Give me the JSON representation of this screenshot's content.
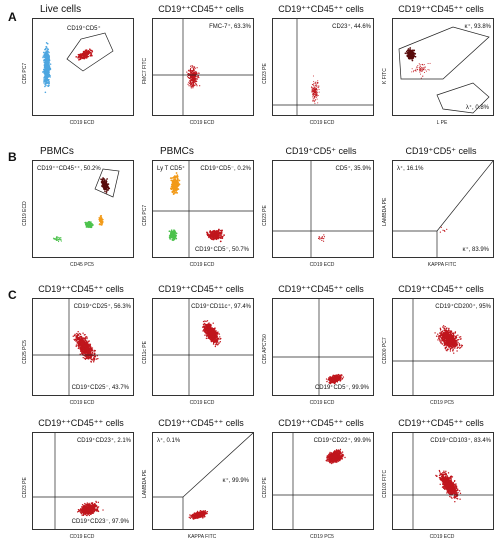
{
  "sections": [
    {
      "letter": "A",
      "panels": [
        {
          "title": "Live cells",
          "ylabel": "CD5 PC7",
          "xlabel": "CD19 ECD",
          "annotations": [
            {
              "text": "CD19⁺CD5⁺",
              "pos": "gate"
            }
          ],
          "kind": "live"
        },
        {
          "title": "CD19⁺⁺CD45⁺⁺ cells",
          "ylabel": "FMC7 FITC",
          "xlabel": "CD19 ECD",
          "annotations": [
            {
              "text": "FMC-7⁺, 63.3%",
              "pos": "top-right"
            }
          ],
          "kind": "scatter-red"
        },
        {
          "title": "CD19⁺⁺CD45⁺⁺ cells",
          "ylabel": "CD23 PE",
          "xlabel": "CD19 ECD",
          "annotations": [
            {
              "text": "CD23⁺, 44.6%",
              "pos": "top-right"
            }
          ],
          "kind": "scatter-red-sparse"
        },
        {
          "title": "CD19⁺⁺CD45⁺⁺ cells",
          "ylabel": "K FITC",
          "xlabel": "L PE",
          "annotations": [
            {
              "text": "κ⁺, 93.8%",
              "pos": "top-right"
            },
            {
              "text": "λ⁺, 0.8%",
              "pos": "bottom-right"
            }
          ],
          "kind": "kappa"
        }
      ]
    },
    {
      "letter": "B",
      "panels": [
        {
          "title": "PBMCs",
          "ylabel": "CD19 ECD",
          "xlabel": "CD45 PC5",
          "annotations": [
            {
              "text": "CD19⁺⁺CD45⁺⁺, 50.2%",
              "pos": "top-left"
            }
          ],
          "kind": "pbmc1"
        },
        {
          "title": "PBMCs",
          "ylabel": "CD5 PC7",
          "xlabel": "CD19 ECD",
          "annotations": [
            {
              "text": "Ly T CD5⁺",
              "pos": "top-left"
            },
            {
              "text": "CD19⁺CD5⁻, 0.2%",
              "pos": "top-right"
            },
            {
              "text": "CD19⁺CD5⁻, 50.7%",
              "pos": "bottom-right"
            }
          ],
          "kind": "pbmc2"
        },
        {
          "title": "CD19⁺CD5⁺ cells",
          "ylabel": "CD23 PE",
          "xlabel": "CD19 ECD",
          "annotations": [
            {
              "text": "CD5⁺, 35.9%",
              "pos": "top-right"
            }
          ],
          "kind": "sparse-b"
        },
        {
          "title": "CD19⁺CD5⁺ cells",
          "ylabel": "LAMBDA PE",
          "xlabel": "KAPPA FITC",
          "annotations": [
            {
              "text": "λ⁺, 16.1%",
              "pos": "top-left"
            },
            {
              "text": "κ⁺, 83.9%",
              "pos": "bottom-right"
            }
          ],
          "kind": "lambda-b"
        }
      ]
    },
    {
      "letter": "C",
      "panels": [
        {
          "title": "CD19⁺⁺CD45⁺⁺ cells",
          "ylabel": "CD25 PC5",
          "xlabel": "CD19 ECD",
          "annotations": [
            {
              "text": "CD19⁺CD25⁺, 56.3%",
              "pos": "top-right"
            },
            {
              "text": "CD19⁺CD25⁻, 43.7%",
              "pos": "bottom-right"
            }
          ],
          "kind": "c-mid"
        },
        {
          "title": "CD19⁺⁺CD45⁺⁺ cells",
          "ylabel": "CD11c PE",
          "xlabel": "CD19 ECD",
          "annotations": [
            {
              "text": "CD19⁺CD11c⁺, 97.4%",
              "pos": "top-right"
            }
          ],
          "kind": "c-high"
        },
        {
          "title": "CD19⁺⁺CD45⁺⁺ cells",
          "ylabel": "CD5 APC750",
          "xlabel": "CD19 ECD",
          "annotations": [
            {
              "text": "CD19⁺CD5⁻, 99.9%",
              "pos": "bottom-right"
            }
          ],
          "kind": "c-low"
        },
        {
          "title": "CD19⁺⁺CD45⁺⁺ cells",
          "ylabel": "CD200 PC7",
          "xlabel": "CD19 PC5",
          "annotations": [
            {
              "text": "CD19⁺CD200⁺, 95%",
              "pos": "top-right"
            }
          ],
          "kind": "c-high2"
        },
        {
          "title": "CD19⁺⁺CD45⁺⁺ cells",
          "ylabel": "CD23 PE",
          "xlabel": "CD19 ECD",
          "annotations": [
            {
              "text": "CD19⁺CD23⁺, 2.1%",
              "pos": "top-right"
            },
            {
              "text": "CD19⁺CD23⁻, 97.9%",
              "pos": "bottom-right"
            }
          ],
          "kind": "c-low2"
        },
        {
          "title": "CD19⁺⁺CD45⁺⁺ cells",
          "ylabel": "LAMBDA PE",
          "xlabel": "KAPPA FITC",
          "annotations": [
            {
              "text": "λ⁺, 0.1%",
              "pos": "top-left"
            },
            {
              "text": "κ⁺, 99.9%",
              "pos": "mid-right"
            }
          ],
          "kind": "c-kappa"
        },
        {
          "title": "CD19⁺⁺CD45⁺⁺ cells",
          "ylabel": "CD22 PE",
          "xlabel": "CD19 PC5",
          "annotations": [
            {
              "text": "CD19⁺CD22⁺, 99.9%",
              "pos": "top-right"
            }
          ],
          "kind": "c-high3"
        },
        {
          "title": "CD19⁺⁺CD45⁺⁺ cells",
          "ylabel": "CD103 FITC",
          "xlabel": "CD19 ECD",
          "annotations": [
            {
              "text": "CD19⁺CD103⁺, 83.4%",
              "pos": "top-right"
            }
          ],
          "kind": "c-mid2"
        }
      ]
    }
  ],
  "colors": {
    "red": "#c0161d",
    "blue": "#4da6e0",
    "orange": "#f29a18",
    "green": "#4cc24c",
    "darkred": "#5a0d0d"
  }
}
